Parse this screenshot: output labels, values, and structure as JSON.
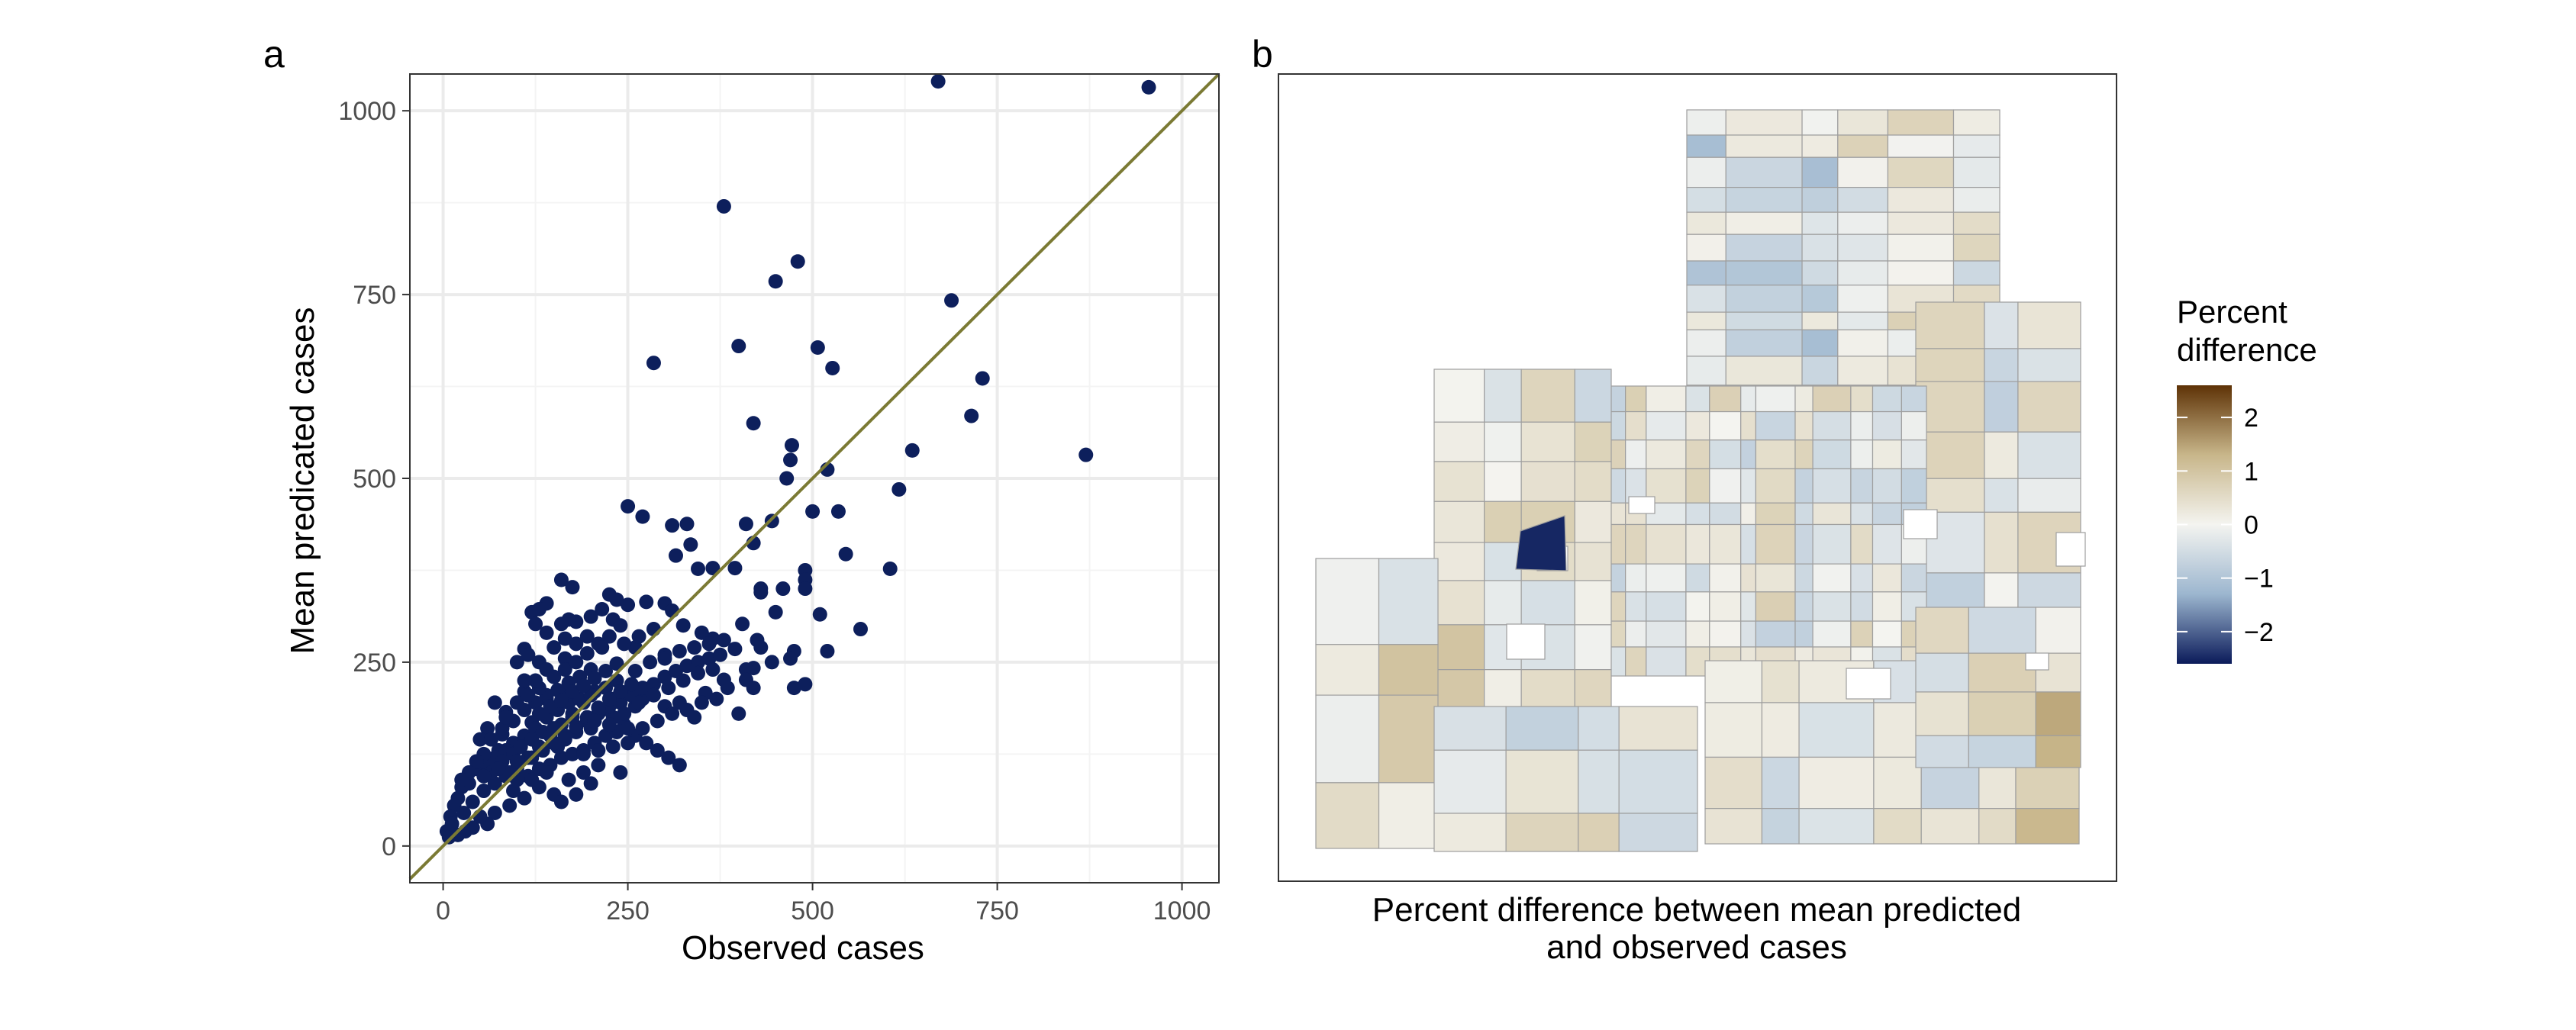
{
  "chart_data": [
    {
      "panel": "a",
      "type": "scatter",
      "xlabel": "Observed cases",
      "ylabel": "Mean predicated cases",
      "xlim": [
        -45,
        1050
      ],
      "ylim": [
        -50,
        1050
      ],
      "xticks": [
        0,
        250,
        500,
        750,
        1000
      ],
      "yticks": [
        0,
        250,
        500,
        750,
        1000
      ],
      "grid": true,
      "reference_line": "y = x",
      "colors": {
        "points": "#0d1f5c",
        "line": "#7b7a34",
        "grid": "#ebebeb",
        "grid_minor": "#f4f4f4"
      },
      "points": [
        [
          955,
          1032
        ],
        [
          670,
          1040
        ],
        [
          380,
          870
        ],
        [
          480,
          795
        ],
        [
          450,
          768
        ],
        [
          688,
          742
        ],
        [
          400,
          680
        ],
        [
          507,
          678
        ],
        [
          285,
          657
        ],
        [
          527,
          650
        ],
        [
          730,
          636
        ],
        [
          715,
          585
        ],
        [
          420,
          575
        ],
        [
          870,
          532
        ],
        [
          472,
          545
        ],
        [
          635,
          538
        ],
        [
          470,
          525
        ],
        [
          520,
          512
        ],
        [
          617,
          485
        ],
        [
          465,
          500
        ],
        [
          250,
          462
        ],
        [
          270,
          448
        ],
        [
          410,
          438
        ],
        [
          445,
          442
        ],
        [
          310,
          436
        ],
        [
          330,
          438
        ],
        [
          500,
          455
        ],
        [
          535,
          455
        ],
        [
          420,
          412
        ],
        [
          335,
          410
        ],
        [
          315,
          395
        ],
        [
          545,
          397
        ],
        [
          395,
          378
        ],
        [
          345,
          377
        ],
        [
          365,
          378
        ],
        [
          490,
          375
        ],
        [
          490,
          362
        ],
        [
          605,
          377
        ],
        [
          490,
          350
        ],
        [
          430,
          350
        ],
        [
          430,
          345
        ],
        [
          460,
          350
        ],
        [
          160,
          362
        ],
        [
          175,
          352
        ],
        [
          225,
          342
        ],
        [
          235,
          335
        ],
        [
          275,
          332
        ],
        [
          300,
          330
        ],
        [
          215,
          322
        ],
        [
          200,
          312
        ],
        [
          250,
          328
        ],
        [
          140,
          330
        ],
        [
          120,
          318
        ],
        [
          130,
          322
        ],
        [
          310,
          320
        ],
        [
          180,
          305
        ],
        [
          170,
          308
        ],
        [
          125,
          302
        ],
        [
          160,
          302
        ],
        [
          405,
          302
        ],
        [
          565,
          295
        ],
        [
          510,
          315
        ],
        [
          450,
          318
        ],
        [
          230,
          308
        ],
        [
          240,
          300
        ],
        [
          350,
          290
        ],
        [
          140,
          290
        ],
        [
          260,
          270
        ],
        [
          110,
          268
        ],
        [
          115,
          260
        ],
        [
          130,
          250
        ],
        [
          165,
          255
        ],
        [
          100,
          250
        ],
        [
          365,
          282
        ],
        [
          425,
          280
        ],
        [
          395,
          268
        ],
        [
          430,
          270
        ],
        [
          475,
          265
        ],
        [
          520,
          265
        ],
        [
          470,
          255
        ],
        [
          445,
          250
        ],
        [
          420,
          242
        ],
        [
          410,
          240
        ],
        [
          380,
          226
        ],
        [
          410,
          226
        ],
        [
          490,
          220
        ],
        [
          475,
          215
        ],
        [
          420,
          215
        ],
        [
          355,
          208
        ],
        [
          400,
          180
        ],
        [
          260,
          190
        ],
        [
          300,
          190
        ],
        [
          320,
          195
        ],
        [
          340,
          175
        ],
        [
          175,
          175
        ],
        [
          200,
          160
        ],
        [
          230,
          200
        ],
        [
          270,
          200
        ],
        [
          250,
          210
        ],
        [
          140,
          200
        ],
        [
          160,
          210
        ],
        [
          110,
          210
        ],
        [
          70,
          195
        ],
        [
          85,
          182
        ],
        [
          120,
          168
        ],
        [
          60,
          160
        ],
        [
          80,
          152
        ],
        [
          50,
          145
        ],
        [
          75,
          130
        ],
        [
          45,
          105
        ],
        [
          60,
          110
        ],
        [
          35,
          85
        ],
        [
          20,
          65
        ],
        [
          25,
          80
        ],
        [
          15,
          55
        ],
        [
          10,
          40
        ],
        [
          5,
          20
        ],
        [
          8,
          12
        ],
        [
          12,
          30
        ],
        [
          28,
          45
        ],
        [
          40,
          60
        ],
        [
          55,
          75
        ],
        [
          70,
          85
        ],
        [
          85,
          95
        ],
        [
          100,
          105
        ],
        [
          115,
          120
        ],
        [
          130,
          135
        ],
        [
          145,
          150
        ],
        [
          160,
          165
        ],
        [
          175,
          180
        ],
        [
          190,
          195
        ],
        [
          205,
          210
        ],
        [
          220,
          215
        ],
        [
          235,
          225
        ],
        [
          95,
          140
        ],
        [
          110,
          150
        ],
        [
          125,
          160
        ],
        [
          140,
          175
        ],
        [
          155,
          185
        ],
        [
          170,
          195
        ],
        [
          185,
          200
        ],
        [
          200,
          205
        ],
        [
          215,
          185
        ],
        [
          230,
          175
        ],
        [
          245,
          165
        ],
        [
          260,
          150
        ],
        [
          275,
          140
        ],
        [
          290,
          130
        ],
        [
          305,
          120
        ],
        [
          320,
          110
        ],
        [
          70,
          120
        ],
        [
          85,
          130
        ],
        [
          65,
          100
        ],
        [
          80,
          115
        ],
        [
          95,
          125
        ],
        [
          105,
          135
        ],
        [
          120,
          145
        ],
        [
          135,
          155
        ],
        [
          150,
          160
        ],
        [
          100,
          90
        ],
        [
          115,
          95
        ],
        [
          130,
          105
        ],
        [
          145,
          110
        ],
        [
          160,
          120
        ],
        [
          175,
          125
        ],
        [
          190,
          130
        ],
        [
          205,
          140
        ],
        [
          220,
          150
        ],
        [
          235,
          155
        ],
        [
          250,
          160
        ],
        [
          130,
          80
        ],
        [
          150,
          70
        ],
        [
          170,
          90
        ],
        [
          190,
          100
        ],
        [
          210,
          110
        ],
        [
          240,
          100
        ],
        [
          200,
          85
        ],
        [
          180,
          70
        ],
        [
          160,
          60
        ],
        [
          90,
          55
        ],
        [
          70,
          45
        ],
        [
          110,
          65
        ],
        [
          60,
          30
        ],
        [
          40,
          25
        ],
        [
          30,
          20
        ],
        [
          50,
          40
        ],
        [
          20,
          15
        ],
        [
          95,
          75
        ],
        [
          120,
          90
        ],
        [
          140,
          100
        ],
        [
          155,
          135
        ],
        [
          165,
          145
        ],
        [
          180,
          155
        ],
        [
          195,
          170
        ],
        [
          210,
          180
        ],
        [
          225,
          190
        ],
        [
          240,
          195
        ],
        [
          255,
          205
        ],
        [
          270,
          215
        ],
        [
          285,
          220
        ],
        [
          300,
          230
        ],
        [
          315,
          238
        ],
        [
          330,
          245
        ],
        [
          345,
          250
        ],
        [
          360,
          255
        ],
        [
          375,
          260
        ],
        [
          200,
          240
        ],
        [
          185,
          230
        ],
        [
          170,
          222
        ],
        [
          155,
          212
        ],
        [
          140,
          205
        ],
        [
          125,
          195
        ],
        [
          110,
          185
        ],
        [
          95,
          170
        ],
        [
          80,
          160
        ],
        [
          65,
          145
        ],
        [
          55,
          125
        ],
        [
          45,
          115
        ],
        [
          35,
          100
        ],
        [
          25,
          90
        ],
        [
          90,
          100
        ],
        [
          100,
          115
        ],
        [
          120,
          120
        ],
        [
          135,
          130
        ],
        [
          150,
          140
        ],
        [
          165,
          150
        ],
        [
          180,
          162
        ],
        [
          195,
          175
        ],
        [
          210,
          188
        ],
        [
          225,
          200
        ],
        [
          240,
          210
        ],
        [
          255,
          220
        ],
        [
          260,
          238
        ],
        [
          280,
          250
        ],
        [
          300,
          260
        ],
        [
          150,
          230
        ],
        [
          165,
          240
        ],
        [
          180,
          250
        ],
        [
          195,
          262
        ],
        [
          210,
          275
        ],
        [
          130,
          215
        ],
        [
          115,
          205
        ],
        [
          100,
          195
        ],
        [
          85,
          175
        ],
        [
          140,
          240
        ],
        [
          125,
          225
        ],
        [
          110,
          225
        ],
        [
          180,
          275
        ],
        [
          195,
          285
        ],
        [
          150,
          270
        ],
        [
          165,
          282
        ],
        [
          300,
          255
        ],
        [
          320,
          265
        ],
        [
          340,
          270
        ],
        [
          360,
          275
        ],
        [
          380,
          280
        ],
        [
          325,
          300
        ],
        [
          285,
          295
        ],
        [
          225,
          285
        ],
        [
          215,
          270
        ],
        [
          245,
          275
        ],
        [
          265,
          285
        ],
        [
          55,
          95
        ],
        [
          75,
          105
        ],
        [
          130,
          180
        ],
        [
          145,
          190
        ],
        [
          160,
          198
        ],
        [
          175,
          210
        ],
        [
          190,
          218
        ],
        [
          205,
          228
        ],
        [
          220,
          238
        ],
        [
          235,
          248
        ],
        [
          190,
          125
        ],
        [
          210,
          130
        ],
        [
          230,
          135
        ],
        [
          250,
          140
        ],
        [
          270,
          160
        ],
        [
          290,
          170
        ],
        [
          310,
          180
        ],
        [
          330,
          185
        ],
        [
          350,
          195
        ],
        [
          370,
          200
        ],
        [
          385,
          215
        ],
        [
          205,
          170
        ],
        [
          225,
          165
        ],
        [
          245,
          180
        ],
        [
          265,
          195
        ],
        [
          285,
          205
        ],
        [
          305,
          215
        ],
        [
          325,
          225
        ],
        [
          345,
          235
        ],
        [
          365,
          240
        ]
      ]
    },
    {
      "panel": "b",
      "type": "heatmap",
      "caption_line1": "Percent difference between mean predicted",
      "caption_line2": "and observed cases",
      "legend_title_line1": "Percent",
      "legend_title_line2": "difference",
      "legend_ticks": [
        "2",
        "1",
        "0",
        "−1",
        "−2"
      ],
      "legend_range": [
        -2.6,
        2.6
      ],
      "legend_placement": "right",
      "colors": {
        "high": "#5e3206",
        "mid_high": "#c8b68a",
        "mid": "#f4f4f0",
        "mid_low": "#9cb6cf",
        "low": "#0b1b5a",
        "border": "#9e9e9e"
      }
    }
  ],
  "panel_a_letter": "a",
  "panel_b_letter": "b"
}
